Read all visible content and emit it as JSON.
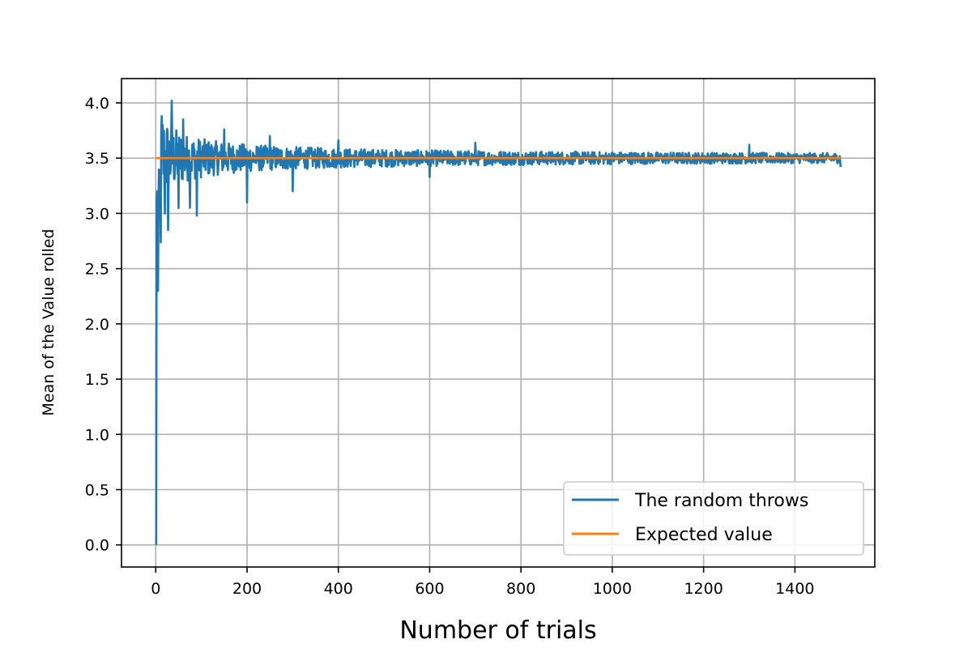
{
  "chart_data": {
    "type": "line",
    "title": "",
    "xlabel": "Number of trials",
    "ylabel": "Mean of the Value rolled",
    "xlim": [
      -75,
      1575
    ],
    "ylim": [
      -0.2,
      4.22
    ],
    "xticks": [
      0,
      200,
      400,
      600,
      800,
      1000,
      1200,
      1400
    ],
    "yticks": [
      0.0,
      0.5,
      1.0,
      1.5,
      2.0,
      2.5,
      3.0,
      3.5,
      4.0
    ],
    "ytick_labels": [
      "0.0",
      "0.5",
      "1.0",
      "1.5",
      "2.0",
      "2.5",
      "3.0",
      "3.5",
      "4.0"
    ],
    "grid": true,
    "legend_position": "lower-right",
    "series": [
      {
        "name": "The random throws",
        "color": "#1f77b4",
        "style": "noisy around expected value, decaying amplitude",
        "x_range": [
          1,
          1500
        ],
        "anchor_points": [
          [
            1,
            0.0
          ],
          [
            3,
            3.2
          ],
          [
            5,
            2.3
          ],
          [
            8,
            3.2
          ],
          [
            12,
            3.7
          ],
          [
            20,
            3.0
          ],
          [
            27,
            2.85
          ],
          [
            35,
            4.02
          ],
          [
            50,
            3.05
          ],
          [
            60,
            3.85
          ],
          [
            75,
            3.05
          ],
          [
            90,
            2.98
          ],
          [
            150,
            3.76
          ],
          [
            200,
            3.1
          ],
          [
            250,
            3.7
          ],
          [
            300,
            3.2
          ],
          [
            400,
            3.66
          ],
          [
            500,
            3.55
          ],
          [
            600,
            3.33
          ],
          [
            700,
            3.64
          ],
          [
            1000,
            3.55
          ],
          [
            1300,
            3.62
          ],
          [
            1500,
            3.42
          ]
        ]
      },
      {
        "name": "Expected value",
        "color": "#ff7f0e",
        "x": [
          0,
          1500
        ],
        "y": [
          3.5,
          3.5
        ]
      }
    ]
  }
}
